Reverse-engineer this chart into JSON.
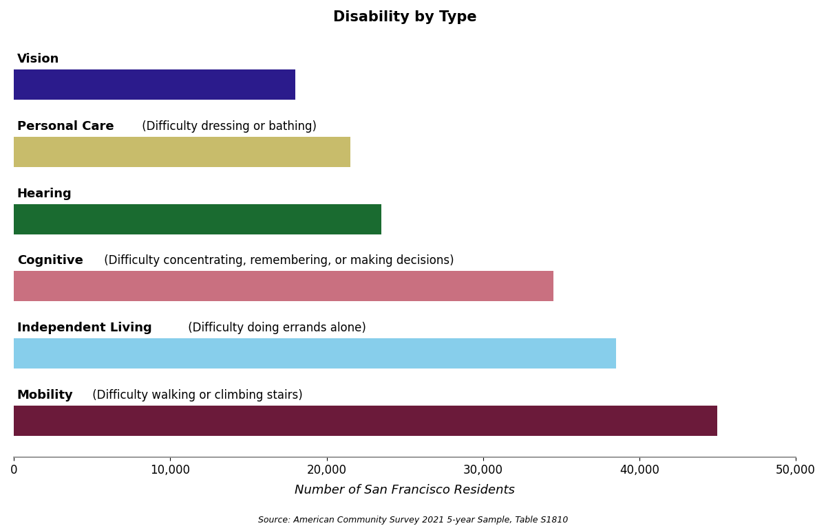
{
  "title": "Disability by Type",
  "categories": [
    "Vision",
    "Personal Care",
    "Hearing",
    "Cognitive",
    "Independent Living",
    "Mobility"
  ],
  "subtitles": [
    "",
    "(Difficulty dressing or bathing)",
    "",
    "(Difficulty concentrating, remembering, or making decisions)",
    "(Difficulty doing errands alone)",
    "(Difficulty walking or climbing stairs)"
  ],
  "values": [
    18000,
    21500,
    23500,
    34500,
    38500,
    45000
  ],
  "bar_colors": [
    "#2b1b8c",
    "#c8bc6b",
    "#1a6b30",
    "#c97080",
    "#87ceeb",
    "#6b1a3a"
  ],
  "xlabel": "Number of San Francisco Residents",
  "source": "Source: American Community Survey 2021 5-year Sample, Table S1810",
  "xlim": [
    0,
    50000
  ],
  "xticks": [
    0,
    10000,
    20000,
    30000,
    40000,
    50000
  ],
  "xtick_labels": [
    "0",
    "10,000",
    "20,000",
    "30,000",
    "40,000",
    "50,000"
  ],
  "background_color": "#ffffff",
  "title_fontsize": 15,
  "bar_height": 0.45,
  "bar_spacing": 1.0
}
